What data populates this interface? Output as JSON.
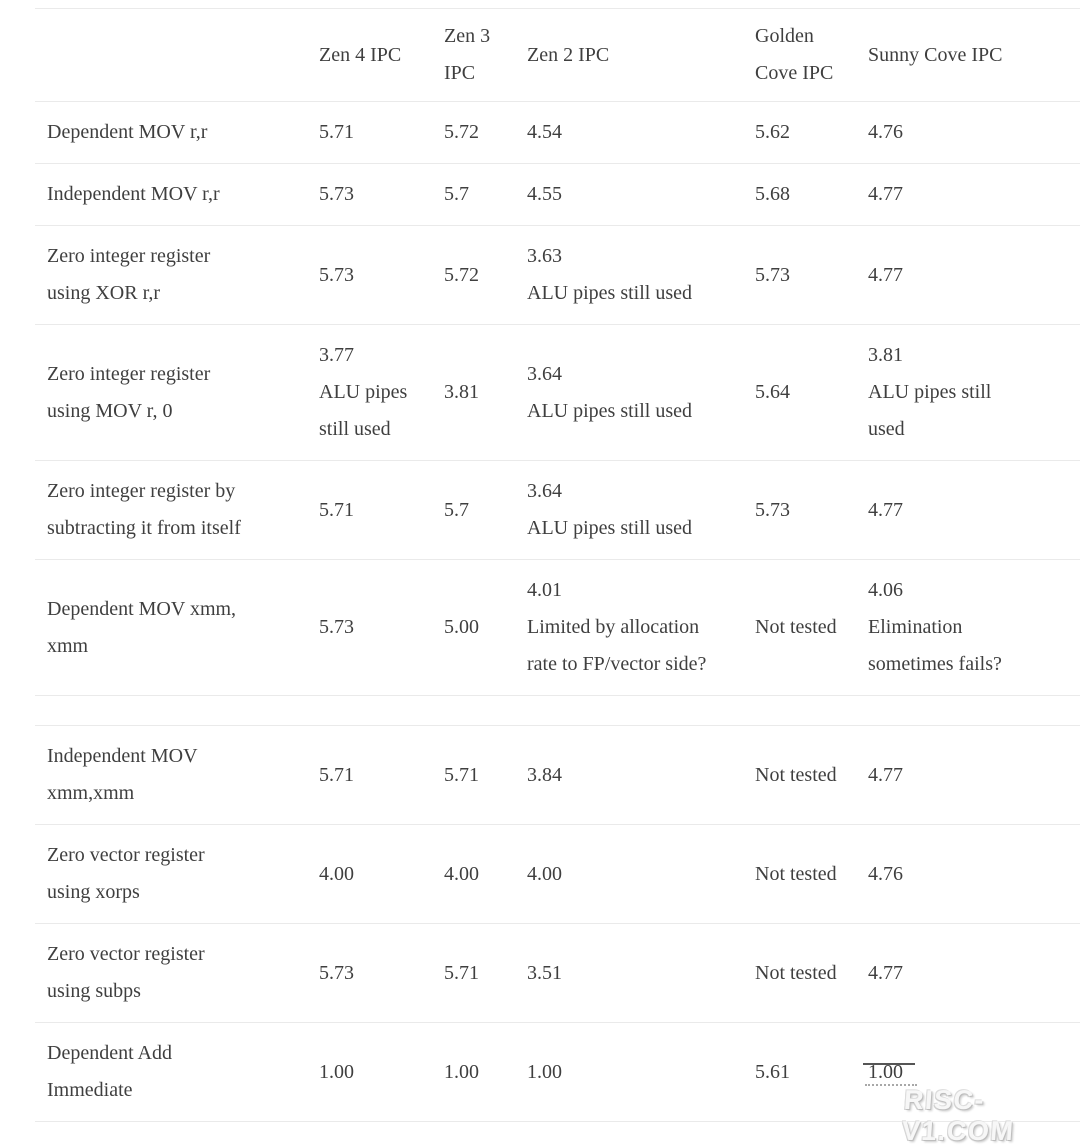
{
  "colors": {
    "background": "#ffffff",
    "text": "#3f3f3f",
    "border": "#eaeaea",
    "watermark": "#c9c9c9"
  },
  "watermark": {
    "text": "RISC-V1.COM"
  },
  "chart_data": {
    "type": "table",
    "title": "",
    "columns": [
      "",
      "Zen 4 IPC",
      "Zen 3 IPC",
      "Zen 2 IPC",
      "Golden Cove IPC",
      "Sunny Cove IPC"
    ],
    "rows": [
      [
        "Dependent MOV r,r",
        "5.71",
        "5.72",
        "4.54",
        "5.62",
        "4.76"
      ],
      [
        "Independent MOV r,r",
        "5.73",
        "5.7",
        "4.55",
        "5.68",
        "4.77"
      ],
      [
        "Zero integer register using XOR r,r",
        "5.73",
        "5.72",
        "3.63 ALU pipes still used",
        "5.73",
        "4.77"
      ],
      [
        "Zero integer register using MOV r, 0",
        "3.77 ALU pipes still used",
        "3.81",
        "3.64 ALU pipes still used",
        "5.64",
        "3.81 ALU pipes still used"
      ],
      [
        "Zero integer register by subtracting it from itself",
        "5.71",
        "5.7",
        "3.64 ALU pipes still used",
        "5.73",
        "4.77"
      ],
      [
        "Dependent MOV xmm, xmm",
        "5.73",
        "5.00",
        "4.01 Limited by allocation rate to FP/vector side?",
        "Not tested",
        "4.06 Elimination sometimes fails?"
      ],
      [
        "",
        "",
        "",
        "",
        "",
        ""
      ],
      [
        "Independent MOV xmm,xmm",
        "5.71",
        "5.71",
        "3.84",
        "Not tested",
        "4.77"
      ],
      [
        "Zero vector register using xorps",
        "4.00",
        "4.00",
        "4.00",
        "Not tested",
        "4.76"
      ],
      [
        "Zero vector register using subps",
        "5.73",
        "5.71",
        "3.51",
        "Not tested",
        "4.77"
      ],
      [
        "Dependent Add Immediate",
        "1.00",
        "1.00",
        "1.00",
        "5.61",
        "1.00"
      ]
    ]
  },
  "table": {
    "columns": [
      {
        "id": "row-label",
        "lines": []
      },
      {
        "id": "zen4-ipc",
        "lines": [
          "Zen 4 IPC"
        ]
      },
      {
        "id": "zen3-ipc",
        "lines": [
          "Zen 3",
          "IPC"
        ]
      },
      {
        "id": "zen2-ipc",
        "lines": [
          "Zen 2 IPC"
        ]
      },
      {
        "id": "golden-cove-ipc",
        "lines": [
          "Golden",
          "Cove IPC"
        ]
      },
      {
        "id": "sunny-cove-ipc",
        "lines": [
          "Sunny Cove IPC"
        ]
      }
    ],
    "rows": [
      {
        "cells": [
          [
            "Dependent MOV r,r"
          ],
          [
            "5.71"
          ],
          [
            "5.72"
          ],
          [
            "4.54"
          ],
          [
            "5.62"
          ],
          [
            "4.76"
          ]
        ]
      },
      {
        "cells": [
          [
            "Independent MOV r,r"
          ],
          [
            "5.73"
          ],
          [
            "5.7"
          ],
          [
            "4.55"
          ],
          [
            "5.68"
          ],
          [
            "4.77"
          ]
        ]
      },
      {
        "cells": [
          [
            "Zero integer register",
            "using XOR r,r"
          ],
          [
            "5.73"
          ],
          [
            "5.72"
          ],
          [
            "3.63",
            "ALU pipes still used"
          ],
          [
            "5.73"
          ],
          [
            "4.77"
          ]
        ]
      },
      {
        "cells": [
          [
            "Zero integer register",
            "using MOV r, 0"
          ],
          [
            "3.77",
            "ALU pipes",
            "still used"
          ],
          [
            "3.81"
          ],
          [
            "3.64",
            "ALU pipes still used"
          ],
          [
            "5.64"
          ],
          [
            "3.81",
            "ALU pipes still",
            "used"
          ]
        ]
      },
      {
        "cells": [
          [
            "Zero integer register by",
            "subtracting it from itself"
          ],
          [
            "5.71"
          ],
          [
            "5.7"
          ],
          [
            "3.64",
            "ALU pipes still used"
          ],
          [
            "5.73"
          ],
          [
            "4.77"
          ]
        ]
      },
      {
        "cells": [
          [
            "Dependent MOV xmm,",
            "xmm"
          ],
          [
            "5.73"
          ],
          [
            "5.00"
          ],
          [
            "4.01",
            "Limited by allocation",
            "rate to FP/vector side?"
          ],
          [
            "Not tested"
          ],
          [
            "4.06",
            "Elimination",
            "sometimes fails?"
          ]
        ]
      },
      {
        "empty": true,
        "cells": [
          [],
          [],
          [],
          [],
          [],
          []
        ]
      },
      {
        "cells": [
          [
            "Independent MOV",
            "xmm,xmm"
          ],
          [
            "5.71"
          ],
          [
            "5.71"
          ],
          [
            "3.84"
          ],
          [
            "Not tested"
          ],
          [
            "4.77"
          ]
        ]
      },
      {
        "cells": [
          [
            "Zero vector register",
            "using xorps"
          ],
          [
            "4.00"
          ],
          [
            "4.00"
          ],
          [
            "4.00"
          ],
          [
            "Not tested"
          ],
          [
            "4.76"
          ]
        ]
      },
      {
        "cells": [
          [
            "Zero vector register",
            "using subps"
          ],
          [
            "5.73"
          ],
          [
            "5.71"
          ],
          [
            "3.51"
          ],
          [
            "Not tested"
          ],
          [
            "4.77"
          ]
        ]
      },
      {
        "cells": [
          [
            "Dependent Add",
            "Immediate"
          ],
          [
            "1.00"
          ],
          [
            "1.00"
          ],
          [
            "1.00"
          ],
          [
            "5.61"
          ],
          [
            "1.00"
          ]
        ],
        "watermark_overlap_col": 5
      }
    ]
  }
}
